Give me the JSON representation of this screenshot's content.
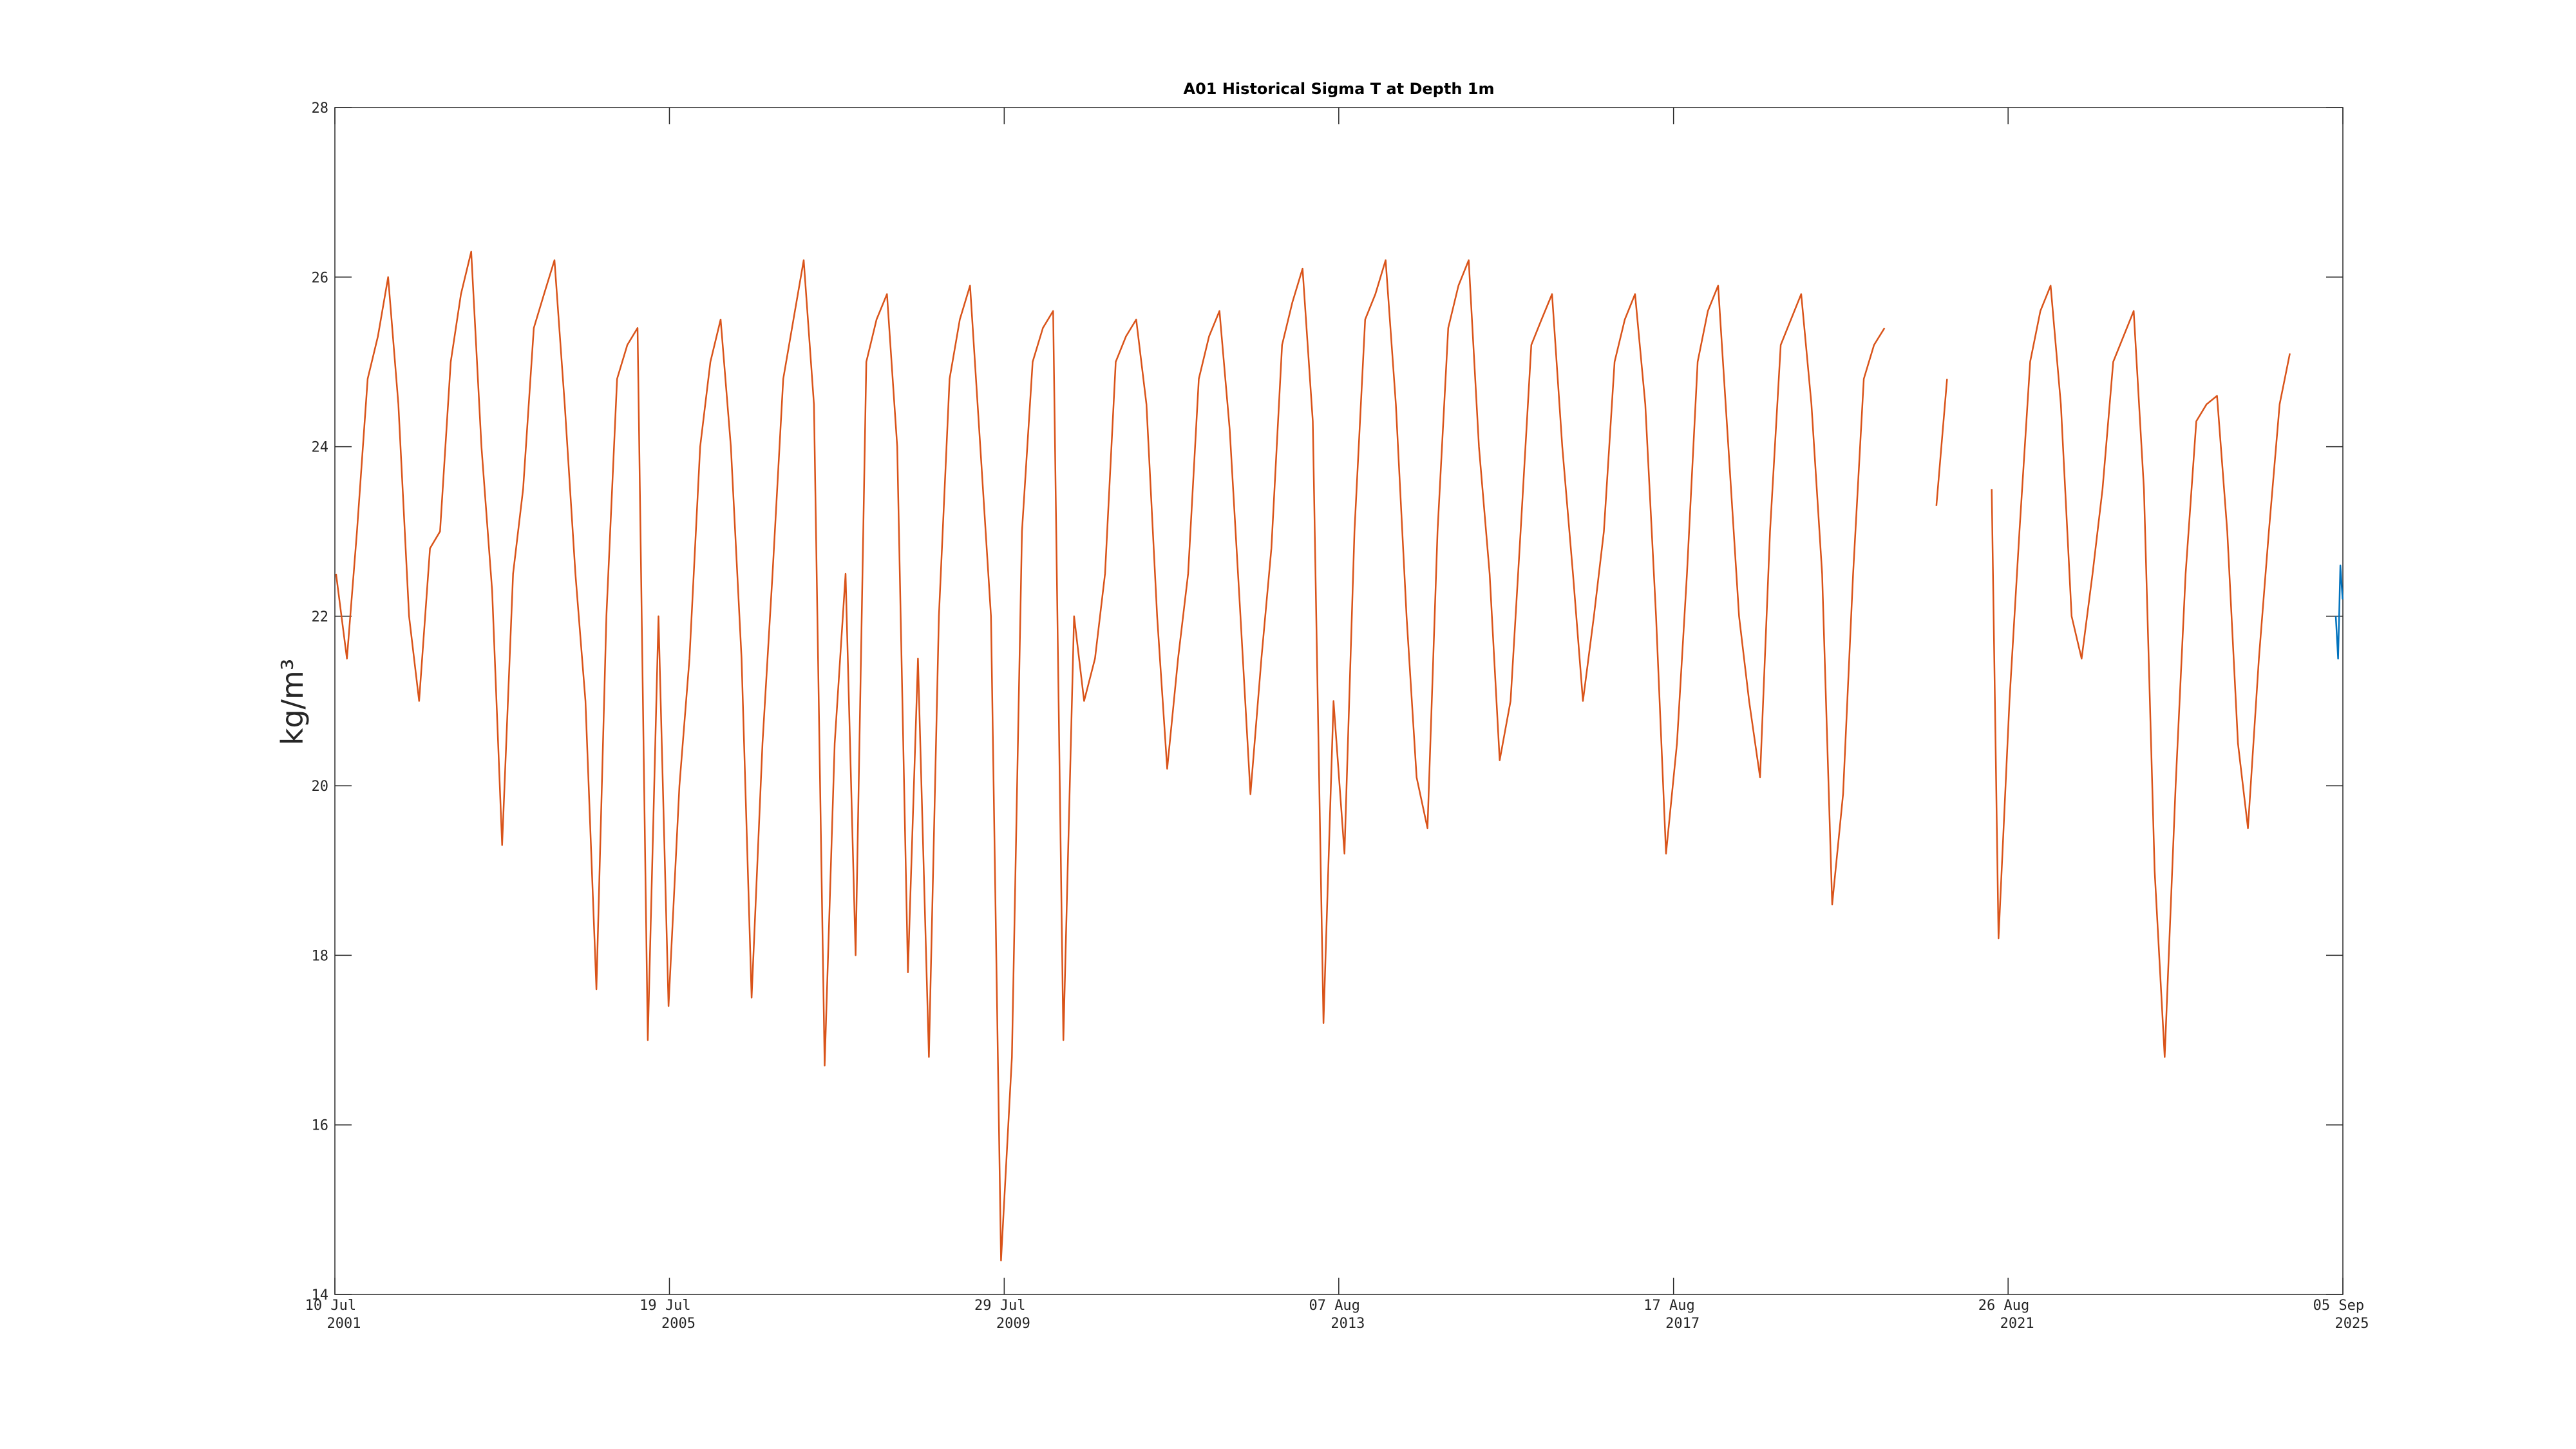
{
  "chart_data": {
    "type": "line",
    "title": "A01 Historical Sigma T at Depth 1m",
    "ylabel": "kg/m³",
    "xlim": [
      "2001-07-10",
      "2025-09-05"
    ],
    "xticks": [
      {
        "value": "2001-07-10",
        "label": "10 Jul 2001"
      },
      {
        "value": "2005-07-19",
        "label": "19 Jul 2005"
      },
      {
        "value": "2009-07-29",
        "label": "29 Jul 2009"
      },
      {
        "value": "2013-08-07",
        "label": "07 Aug 2013"
      },
      {
        "value": "2017-08-17",
        "label": "17 Aug 2017"
      },
      {
        "value": "2021-08-26",
        "label": "26 Aug 2021"
      },
      {
        "value": "2025-09-05",
        "label": "05 Sep 2025"
      }
    ],
    "ylim": [
      14,
      28
    ],
    "yticks": [
      14,
      16,
      18,
      20,
      22,
      24,
      26,
      28
    ],
    "grid": false,
    "series": [
      {
        "color": "#d95319",
        "x": [
          "2001-07-15",
          "2001-09-01",
          "2001-10-15",
          "2001-12-01",
          "2002-01-15",
          "2002-03-01",
          "2002-04-15",
          "2002-06-01",
          "2002-07-15",
          "2002-09-01",
          "2002-10-15",
          "2002-12-01",
          "2003-01-15",
          "2003-03-01",
          "2003-04-15",
          "2003-06-01",
          "2003-07-15",
          "2003-09-01",
          "2003-10-15",
          "2003-12-01",
          "2004-01-15",
          "2004-03-01",
          "2004-04-15",
          "2004-06-01",
          "2004-07-15",
          "2004-09-01",
          "2004-10-15",
          "2004-12-01",
          "2005-01-15",
          "2005-03-01",
          "2005-04-15",
          "2005-06-01",
          "2005-07-15",
          "2005-09-01",
          "2005-10-15",
          "2005-12-01",
          "2006-01-15",
          "2006-03-01",
          "2006-04-15",
          "2006-06-01",
          "2006-07-15",
          "2006-09-01",
          "2006-10-15",
          "2006-12-01",
          "2007-01-15",
          "2007-03-01",
          "2007-04-15",
          "2007-06-01",
          "2007-07-15",
          "2007-09-01",
          "2007-10-15",
          "2007-12-01",
          "2008-01-15",
          "2008-03-01",
          "2008-04-15",
          "2008-06-01",
          "2008-07-15",
          "2008-09-01",
          "2008-10-15",
          "2008-12-01",
          "2009-01-15",
          "2009-03-01",
          "2009-04-15",
          "2009-06-01",
          "2009-07-15",
          "2009-09-01",
          "2009-10-15",
          "2009-12-01",
          "2010-01-15",
          "2010-03-01",
          "2010-04-15",
          "2010-06-01",
          "2010-07-15",
          "2010-09-01",
          "2010-10-15",
          "2010-12-01",
          "2011-01-15",
          "2011-03-01",
          "2011-04-15",
          "2011-06-01",
          "2011-07-15",
          "2011-09-01",
          "2011-10-15",
          "2011-12-01",
          "2012-01-15",
          "2012-03-01",
          "2012-04-15",
          "2012-06-01",
          "2012-07-15",
          "2012-09-01",
          "2012-10-15",
          "2012-12-01",
          "2013-01-15",
          "2013-03-01",
          "2013-04-15",
          "2013-06-01",
          "2013-07-15",
          "2013-09-01",
          "2013-10-15",
          "2013-12-01",
          "2014-01-15",
          "2014-03-01",
          "2014-04-15",
          "2014-06-01",
          "2014-07-15",
          "2014-09-01",
          "2014-10-15",
          "2014-12-01",
          "2015-01-15",
          "2015-03-01",
          "2015-04-15",
          "2015-06-01",
          "2015-07-15",
          "2015-09-01",
          "2015-10-15",
          "2015-12-01",
          "2016-01-15",
          "2016-03-01",
          "2016-04-15",
          "2016-06-01",
          "2016-07-15",
          "2016-09-01",
          "2016-10-15",
          "2016-12-01",
          "2017-01-15",
          "2017-03-01",
          "2017-04-15",
          "2017-06-01",
          "2017-07-15",
          "2017-09-01",
          "2017-10-15",
          "2017-12-01",
          "2018-01-15",
          "2018-03-01",
          "2018-04-15",
          "2018-06-01",
          "2018-07-15",
          "2018-09-01",
          "2018-10-15",
          "2018-12-01",
          "2019-01-15",
          "2019-03-01",
          "2019-04-15",
          "2019-06-01",
          "2019-07-15",
          "2019-09-01",
          "2019-10-15",
          "2019-12-01",
          "2020-01-15",
          "2020-03-01",
          "2020-06-01",
          "2020-10-15",
          "2020-12-01",
          "2021-03-01",
          "2021-06-15",
          "2021-07-15",
          "2021-09-01",
          "2021-10-15",
          "2021-12-01",
          "2022-01-15",
          "2022-03-01",
          "2022-04-15",
          "2022-06-01",
          "2022-07-15",
          "2022-09-01",
          "2022-10-15",
          "2022-12-01",
          "2023-01-15",
          "2023-03-01",
          "2023-04-15",
          "2023-06-01",
          "2023-07-15",
          "2023-09-01",
          "2023-10-15",
          "2023-12-01",
          "2024-01-15",
          "2024-03-01",
          "2024-04-15",
          "2024-06-01",
          "2024-07-15",
          "2024-09-01",
          "2024-10-15",
          "2024-12-01",
          "2025-01-15"
        ],
        "values": [
          22.5,
          21.5,
          23.0,
          24.8,
          25.3,
          26.0,
          24.5,
          22.0,
          21.0,
          22.8,
          23.0,
          25.0,
          25.8,
          26.3,
          24.0,
          22.3,
          19.3,
          22.5,
          23.5,
          25.4,
          25.8,
          26.2,
          24.5,
          22.5,
          21.0,
          17.6,
          22.0,
          24.8,
          25.2,
          25.4,
          17.0,
          22.0,
          17.4,
          20.0,
          21.5,
          24.0,
          25.0,
          25.5,
          24.0,
          21.5,
          17.5,
          20.5,
          22.5,
          24.8,
          25.5,
          26.2,
          24.5,
          16.7,
          20.5,
          22.5,
          18.0,
          25.0,
          25.5,
          25.8,
          24.0,
          17.8,
          21.5,
          16.8,
          22.0,
          24.8,
          25.5,
          25.9,
          24.0,
          22.0,
          14.4,
          16.8,
          23.0,
          25.0,
          25.4,
          25.6,
          17.0,
          22.0,
          21.0,
          21.5,
          22.5,
          25.0,
          25.3,
          25.5,
          24.5,
          22.0,
          20.2,
          21.5,
          22.5,
          24.8,
          25.3,
          25.6,
          24.2,
          22.0,
          19.9,
          21.5,
          22.8,
          25.2,
          25.7,
          26.1,
          24.3,
          17.2,
          21.0,
          19.2,
          23.0,
          25.5,
          25.8,
          26.2,
          24.5,
          22.0,
          20.1,
          19.5,
          23.0,
          25.4,
          25.9,
          26.2,
          24.0,
          22.5,
          20.3,
          21.0,
          23.0,
          25.2,
          25.5,
          25.8,
          24.0,
          22.5,
          21.0,
          22.0,
          23.0,
          25.0,
          25.5,
          25.8,
          24.5,
          22.0,
          19.2,
          20.5,
          22.5,
          25.0,
          25.6,
          25.9,
          24.0,
          22.0,
          21.0,
          20.1,
          23.0,
          25.2,
          25.5,
          25.8,
          24.5,
          22.5,
          18.6,
          19.9,
          22.5,
          24.8,
          25.2,
          25.4,
          null,
          23.3,
          24.8,
          null,
          23.5,
          18.2,
          21.0,
          23.0,
          25.0,
          25.6,
          25.9,
          24.5,
          22.0,
          21.5,
          22.5,
          23.5,
          25.0,
          25.3,
          25.6,
          23.5,
          19.0,
          16.8,
          20.0,
          22.5,
          24.3,
          24.5,
          24.6,
          23.0,
          20.5,
          19.5,
          21.5,
          23.0,
          24.5,
          25.1
        ]
      },
      {
        "color": "#0072bd",
        "x": [
          "2025-08-05",
          "2025-08-15",
          "2025-08-25",
          "2025-09-04"
        ],
        "values": [
          22.0,
          21.5,
          22.6,
          22.2
        ]
      }
    ]
  }
}
